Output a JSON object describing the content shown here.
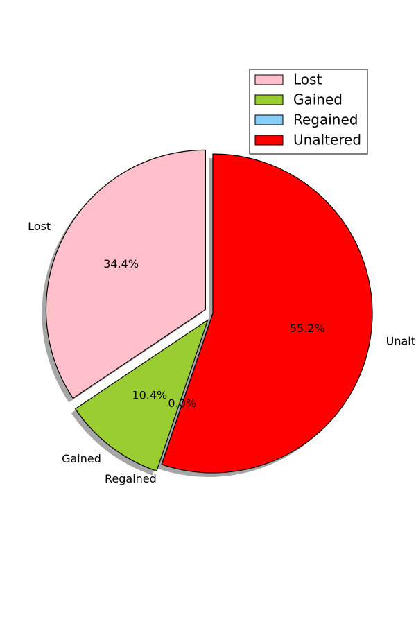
{
  "chart_data": {
    "type": "pie",
    "categories": [
      "Lost",
      "Gained",
      "Regained",
      "Unaltered"
    ],
    "values": [
      34.4,
      10.4,
      0.0,
      55.2
    ],
    "value_labels": [
      "34.4%",
      "10.4%",
      "0.0%",
      "55.2%"
    ],
    "colors": [
      "#FFC0CB",
      "#9ACD32",
      "#87CEFA",
      "#FF0000"
    ],
    "exploded": [
      "Lost",
      "Gained"
    ],
    "shadow": true,
    "legend": {
      "placement": "upper-right",
      "entries": [
        "Lost",
        "Gained",
        "Regained",
        "Unaltered"
      ]
    },
    "title": ""
  }
}
